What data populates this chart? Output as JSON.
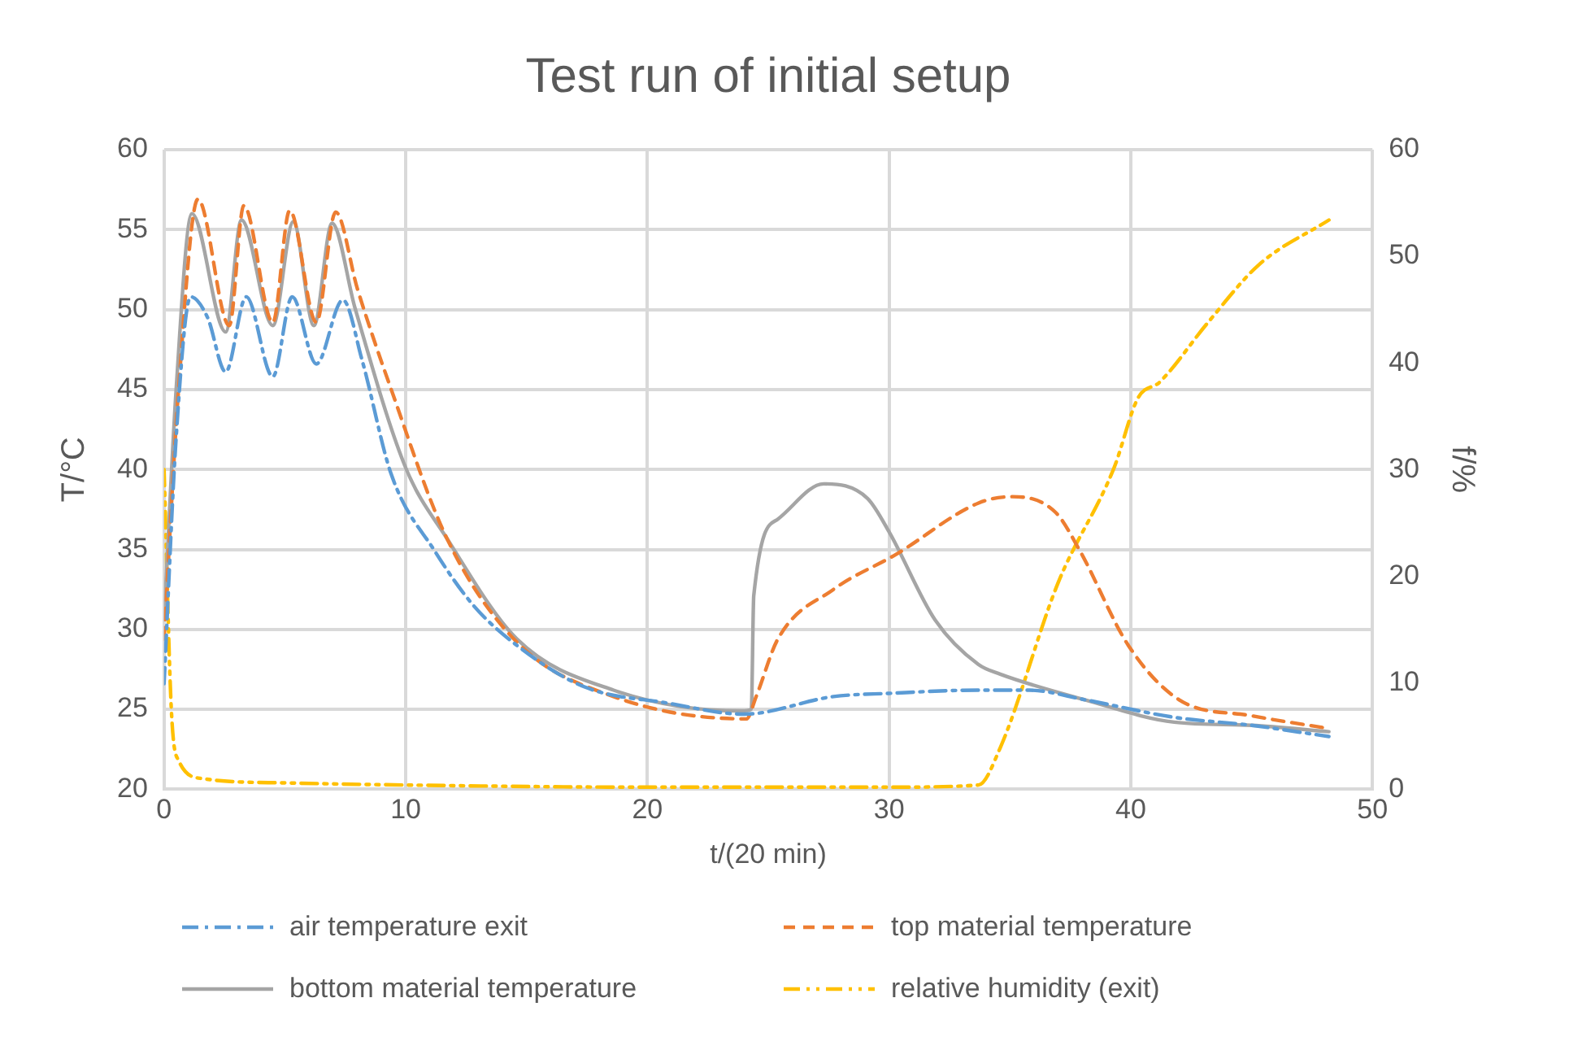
{
  "chart_data": {
    "type": "line",
    "title": "Test run of initial setup",
    "xlabel": "t/(20 min)",
    "ylabel": "T/°C",
    "y2label": "f/%",
    "xlim": [
      0,
      50
    ],
    "xticks": [
      0,
      10,
      20,
      30,
      40,
      50
    ],
    "ylim": [
      20,
      60
    ],
    "yticks": [
      20,
      25,
      30,
      35,
      40,
      45,
      50,
      55,
      60
    ],
    "y2lim": [
      0,
      60
    ],
    "y2ticks": [
      0,
      10,
      20,
      30,
      40,
      50,
      60
    ],
    "grid": true,
    "legend": "bottom",
    "marker": "none",
    "series": [
      {
        "name": "air temperature exit",
        "color": "#5b9bd5",
        "line_style": "dashdot",
        "x": [
          0,
          0.5,
          1.1,
          1.8,
          2.55,
          3.4,
          4.5,
          5.3,
          6.3,
          7.4,
          8.2,
          9.4,
          11.2,
          12.8,
          14.6,
          17.4,
          20.8,
          24,
          27.7,
          30,
          33.7,
          35.8,
          38.1,
          41.8,
          45,
          48.2
        ],
        "values": [
          26.6,
          42,
          50.8,
          49.5,
          46.1,
          50.8,
          45.8,
          50.8,
          46.6,
          50.6,
          46.8,
          39.7,
          34.9,
          31.5,
          29,
          26.4,
          25.4,
          24.7,
          25.8,
          26,
          26.2,
          26.2,
          25.6,
          24.5,
          24,
          23.3
        ]
      },
      {
        "name": "top material temperature",
        "color": "#ed7d31",
        "line_style": "dashed",
        "x": [
          0,
          0.6,
          1.4,
          2.7,
          3.3,
          4.5,
          5.2,
          6.3,
          7.1,
          8,
          9.4,
          11.7,
          14.6,
          18.6,
          24.1,
          24.5,
          25.4,
          27.7,
          30.3,
          33.7,
          35.1,
          36.9,
          37.9,
          39.9,
          42,
          45,
          48.2
        ],
        "values": [
          29.4,
          45,
          56.9,
          49,
          56.5,
          49.2,
          56.2,
          49.2,
          56.1,
          51.3,
          45,
          35.7,
          29.2,
          25.8,
          24.4,
          25.8,
          29.4,
          32.5,
          34.7,
          37.9,
          38.3,
          37.3,
          34.9,
          29,
          25.6,
          24.6,
          23.8
        ]
      },
      {
        "name": "bottom material temperature",
        "color": "#a5a5a5",
        "line_style": "solid",
        "x": [
          0,
          0.5,
          1.15,
          2.55,
          3.2,
          4.5,
          5.35,
          6.2,
          6.95,
          7.9,
          10,
          11.7,
          14.6,
          18.6,
          23.9,
          24.3,
          24.4,
          25.4,
          27.3,
          29.1,
          30,
          31.9,
          33.7,
          34.6,
          38.1,
          41.8,
          45,
          48.2
        ],
        "values": [
          30.6,
          45,
          56,
          48.6,
          55.6,
          49,
          55.5,
          49,
          55.4,
          50.1,
          40.1,
          35.7,
          29.4,
          26.2,
          24.9,
          25,
          32.1,
          36.9,
          39.1,
          38.2,
          36.1,
          30.6,
          27.8,
          27.2,
          25.6,
          24.2,
          24,
          23.6
        ]
      },
      {
        "name": "relative humidity (exit)",
        "color": "#ffc000",
        "line_style": "dashdotdot",
        "axis": "y2",
        "x": [
          0,
          0.3,
          0.6,
          1.6,
          5,
          10,
          20,
          30,
          33.7,
          34.6,
          37,
          39.3,
          40.3,
          41.2,
          43.2,
          45.3,
          48.2
        ],
        "values": [
          30,
          7.5,
          2.7,
          1,
          0.6,
          0.4,
          0.2,
          0.2,
          0.4,
          3.9,
          19.4,
          30.1,
          36.7,
          38.2,
          43.8,
          49.2,
          53.4
        ]
      }
    ]
  }
}
